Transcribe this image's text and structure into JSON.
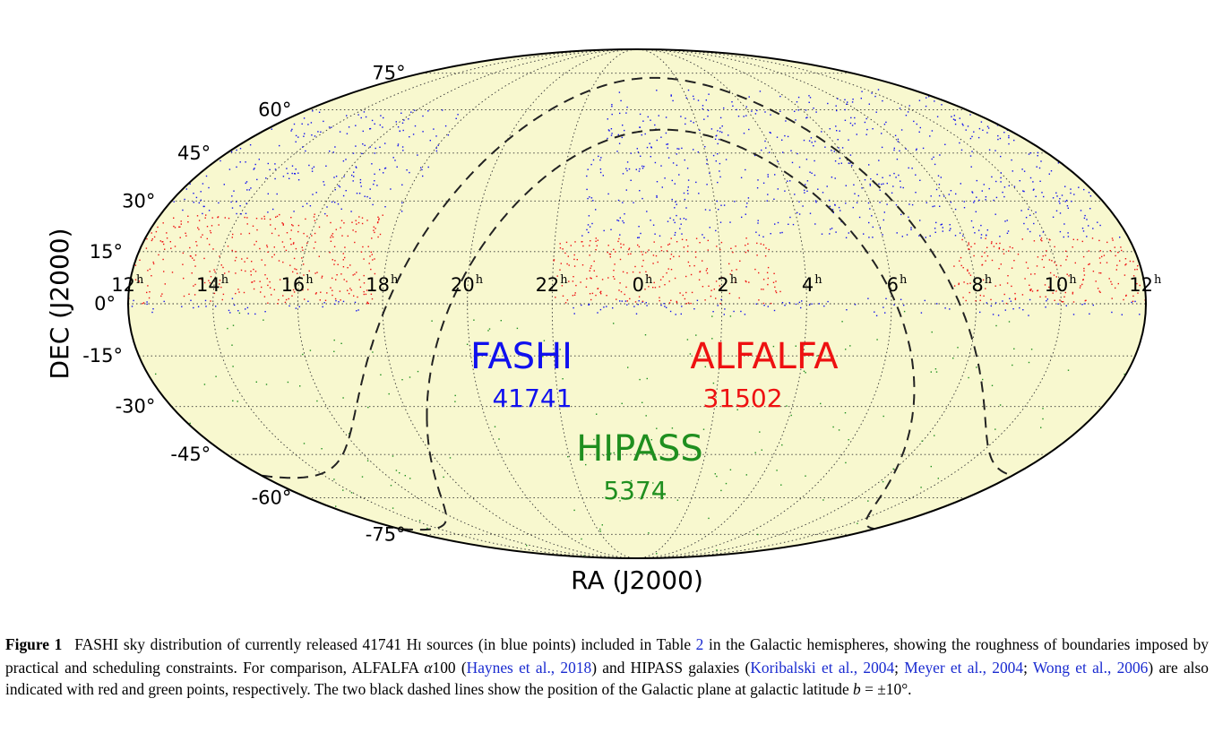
{
  "chart_data": {
    "type": "scatter",
    "projection": "mollweide",
    "xlabel": "RA (J2000)",
    "ylabel": "DEC (J2000)",
    "ra_ticks": [
      {
        "hours": 12,
        "label": "12"
      },
      {
        "hours": 14,
        "label": "14"
      },
      {
        "hours": 16,
        "label": "16"
      },
      {
        "hours": 18,
        "label": "18"
      },
      {
        "hours": 20,
        "label": "20"
      },
      {
        "hours": 22,
        "label": "22"
      },
      {
        "hours": 0,
        "label": "0"
      },
      {
        "hours": 2,
        "label": "2"
      },
      {
        "hours": 4,
        "label": "4"
      },
      {
        "hours": 6,
        "label": "6"
      },
      {
        "hours": 8,
        "label": "8"
      },
      {
        "hours": 10,
        "label": "10"
      },
      {
        "hours": 12,
        "label": "12"
      }
    ],
    "ra_unit": "h",
    "dec_ticks": [
      {
        "deg": 75,
        "label": "75°"
      },
      {
        "deg": 60,
        "label": "60°"
      },
      {
        "deg": 45,
        "label": "45°"
      },
      {
        "deg": 30,
        "label": "30°"
      },
      {
        "deg": 15,
        "label": "15°"
      },
      {
        "deg": 0,
        "label": "0°"
      },
      {
        "deg": -15,
        "label": "-15°"
      },
      {
        "deg": -30,
        "label": "-30°"
      },
      {
        "deg": -45,
        "label": "-45°"
      },
      {
        "deg": -60,
        "label": "-60°"
      },
      {
        "deg": -75,
        "label": "-75°"
      }
    ],
    "grid": true,
    "background_color": "#f8f8cf",
    "series": [
      {
        "name": "FASHI",
        "count": "41741",
        "color": "#1010ee",
        "regions": [
          {
            "ra_range_h": [
              12,
              18.2
            ],
            "dec_range": [
              26,
              60
            ]
          },
          {
            "ra_range_h": [
              22.6,
              12
            ],
            "dec_range": [
              19,
              68
            ]
          },
          {
            "ra_range_h": [
              12,
              17.5
            ],
            "dec_range": [
              -3,
              1.5
            ]
          },
          {
            "ra_range_h": [
              22.5,
              12
            ],
            "dec_range": [
              -3.5,
              1.5
            ]
          }
        ]
      },
      {
        "name": "ALFALFA",
        "count": "31502",
        "color": "#ee1111",
        "regions": [
          {
            "ra_range_h": [
              12,
              17.8
            ],
            "dec_range": [
              0,
              26
            ]
          },
          {
            "ra_range_h": [
              22.0,
              3.4
            ],
            "dec_range": [
              0,
              19
            ]
          },
          {
            "ra_range_h": [
              7.5,
              12
            ],
            "dec_range": [
              0,
              19
            ]
          }
        ]
      },
      {
        "name": "HIPASS",
        "count": "5374",
        "color": "#1f8f1f",
        "regions": [
          {
            "ra_range_h": [
              0,
              24
            ],
            "dec_range": [
              -90,
              -2
            ]
          }
        ]
      }
    ],
    "galactic_plane_lines": [
      {
        "b_deg": 10,
        "style": "dashed",
        "color": "#222222"
      },
      {
        "b_deg": -10,
        "style": "dashed",
        "color": "#222222"
      }
    ]
  },
  "caption": {
    "figure_label": "Figure 1",
    "text_1": "FASHI sky distribution of currently released 41741 H",
    "hi_roman": "I",
    "text_2": " sources (in blue points) included in Table ",
    "table_ref": "2",
    "text_3": " in the Galactic hemispheres, showing the roughness of boundaries imposed by practical and scheduling constraints. For comparison, ALFALFA ",
    "alpha": "α",
    "text_4": "100 (",
    "ref_haynes": "Haynes et al., 2018",
    "text_5": ") and HIPASS galaxies (",
    "ref_koribalski": "Koribalski et al., 2004",
    "sep_1": "; ",
    "ref_meyer": "Meyer et al., 2004",
    "sep_2": "; ",
    "ref_wong": "Wong et al., 2006",
    "text_6": ") are also indicated with red and green points, respectively. The two black dashed lines show the position of the Galactic plane at galactic latitude ",
    "b_sym": "b",
    "text_7": " = ±10°."
  }
}
